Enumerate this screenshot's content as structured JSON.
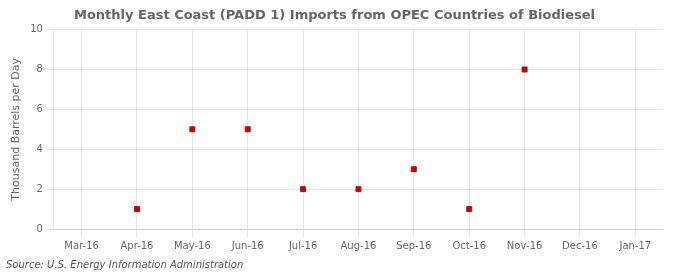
{
  "chart_data": {
    "type": "scatter",
    "title": "Monthly East Coast (PADD 1) Imports from OPEC Countries of Biodiesel",
    "ylabel": "Thousand Barrels per Day",
    "annotation": "Source: U.S. Energy Information Administration",
    "categories": [
      "Mar-16",
      "Apr-16",
      "May-16",
      "Jun-16",
      "Jul-16",
      "Aug-16",
      "Sep-16",
      "Oct-16",
      "Nov-16",
      "Dec-16",
      "Jan-17"
    ],
    "values": [
      null,
      1,
      5,
      5,
      2,
      2,
      3,
      1,
      8,
      null,
      null
    ],
    "color": "#cc0000",
    "marker": "square",
    "ylim": [
      0,
      10
    ],
    "yticks": [
      0,
      2,
      4,
      6,
      8,
      10
    ],
    "grid": true
  }
}
